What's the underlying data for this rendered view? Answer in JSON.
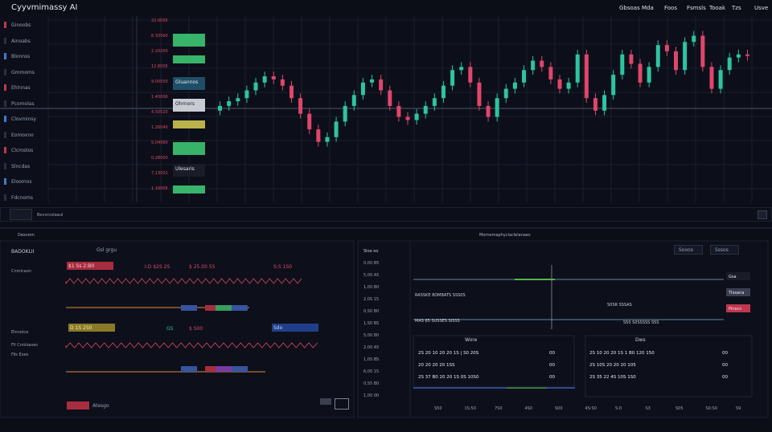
{
  "header": {
    "title": "Cyyvmimassy AI",
    "nav": [
      "Gbsoas",
      "Mda",
      "Foos",
      "Fsmsls",
      "Tooak",
      "Tzs",
      "Usve"
    ]
  },
  "watchlist": [
    "Ginoobs",
    "Ainoabs",
    "Blonnss",
    "Gmmoms",
    "Ehlnnas",
    "Pcomolas",
    "Clovminsy",
    "Eomoxno",
    "Clcmstos",
    "Slncdas",
    "Eloomos",
    "Fdcnoms"
  ],
  "order_book": {
    "prices": [
      "22.0005",
      "6.30560",
      "2.20200",
      "12.8005",
      "9.00500",
      "1.40006",
      "4.50520",
      "1.26040",
      "5.04060",
      "0.28000",
      "7.13002",
      "1.16005"
    ],
    "buttons": [
      {
        "color": "#37b36a"
      },
      {
        "color": "#37b36a"
      },
      {
        "label": "Gluannos",
        "color": "#1f4f66"
      },
      {
        "label": "Ohrnors",
        "color": "#c9cbd2"
      },
      {
        "color": "#b9b24a"
      },
      {
        "color": "#37b36a"
      },
      {
        "label": "Ulesaris",
        "color": "#1a1d28"
      },
      {
        "color": "#37b36a"
      }
    ]
  },
  "chart_data": {
    "type": "candlestick",
    "up_color": "#2ec4a0",
    "down_color": "#e0466a",
    "ylim": [
      20,
      110
    ],
    "open": [
      52,
      55,
      58,
      60,
      65,
      70,
      74,
      72,
      68,
      60,
      50,
      40,
      32,
      35,
      45,
      55,
      62,
      70,
      72,
      65,
      55,
      48,
      46,
      50,
      55,
      60,
      68,
      78,
      80,
      70,
      55,
      48,
      60,
      66,
      70,
      78,
      84,
      80,
      72,
      66,
      70,
      88,
      60,
      52,
      62,
      75,
      88,
      82,
      70,
      80,
      94,
      90,
      78,
      96,
      100,
      80,
      66,
      78,
      86,
      88
    ],
    "high": [
      58,
      61,
      63,
      68,
      73,
      77,
      77,
      75,
      71,
      63,
      53,
      43,
      38,
      48,
      58,
      65,
      73,
      75,
      75,
      68,
      58,
      51,
      53,
      58,
      63,
      71,
      81,
      83,
      83,
      73,
      58,
      63,
      69,
      73,
      81,
      87,
      87,
      83,
      75,
      73,
      91,
      91,
      63,
      65,
      78,
      91,
      91,
      85,
      83,
      97,
      97,
      93,
      99,
      103,
      103,
      83,
      81,
      89,
      91,
      91
    ],
    "low": [
      49,
      52,
      55,
      57,
      62,
      67,
      69,
      65,
      57,
      47,
      37,
      29,
      29,
      32,
      42,
      52,
      59,
      67,
      62,
      52,
      45,
      43,
      43,
      47,
      52,
      57,
      65,
      75,
      67,
      52,
      45,
      45,
      57,
      63,
      67,
      75,
      77,
      69,
      63,
      63,
      67,
      57,
      49,
      49,
      59,
      72,
      79,
      67,
      67,
      77,
      87,
      75,
      75,
      93,
      77,
      63,
      63,
      75,
      83,
      84
    ],
    "close": [
      55,
      58,
      60,
      65,
      70,
      74,
      72,
      68,
      60,
      50,
      40,
      32,
      35,
      45,
      55,
      62,
      70,
      72,
      65,
      55,
      48,
      46,
      50,
      55,
      60,
      68,
      78,
      80,
      70,
      55,
      48,
      60,
      66,
      70,
      78,
      84,
      80,
      72,
      66,
      70,
      88,
      60,
      52,
      62,
      75,
      88,
      82,
      70,
      80,
      94,
      90,
      78,
      96,
      100,
      80,
      66,
      78,
      86,
      88,
      87
    ]
  },
  "toolbar": {
    "label": "Bevvrcolaaul"
  },
  "sections": {
    "left": "Dexvorn",
    "right": "Mornemaphyclaclelanaes"
  },
  "left_panel": {
    "header": "BADOKLII",
    "tab": "Gsl grgu",
    "row_labels": [
      "Cnmicaon",
      "Elnnolca",
      "Fll Cnnloases",
      "Fils Eoes"
    ],
    "tags": [
      "$1 Ss 2:B0",
      "I:D $2S 2S",
      "$ 25.00 5S",
      "S:S 1S0",
      "D 1S 2S0",
      "GS",
      "$ S00",
      "Sdo"
    ],
    "footer": "Atesgo"
  },
  "middle_list": [
    "Sloo oo",
    "0,00 B5",
    "5,00 A5",
    "1,00 B0",
    "2,0S 15",
    "0,S0 B0",
    "1,S0 BS",
    "5,00 80",
    "2,00 A5",
    "1,0S BS",
    "6,00 1S",
    "0,S5 B0",
    "1,00 00"
  ],
  "right_panel": {
    "tools": [
      "Sooos",
      "Sssos"
    ],
    "side": [
      "Gsa",
      "Tlosana",
      "Plnecs"
    ],
    "lines": [
      "RASSKE 8OMBATS SSS0S",
      "MAS 85 SUSSES SISSS",
      "S0SR SSSAS",
      "S50 S0SSSSS S5S"
    ],
    "table_headers": [
      "Wore",
      "Dws"
    ],
    "rows": [
      [
        "2S 20 10 20 20 1S | S0 20S",
        "00",
        "2S 10 20 20 1S 1 B0 120 150",
        "00"
      ],
      [
        "20 20 20 20 1SS",
        "00",
        "2S 10S 20 20 20 105",
        "00"
      ],
      [
        "2S 37 B0 20 20 1S 0S 10S0",
        "00",
        "2S 35 22 4S 10S 1S0",
        "00"
      ]
    ],
    "x_labels": [
      "S50",
      "1S:50",
      "7S0",
      "4S0",
      "S00",
      "4S:S0",
      "S:0",
      "S3",
      "S05",
      "S0:S0",
      "S9"
    ]
  }
}
